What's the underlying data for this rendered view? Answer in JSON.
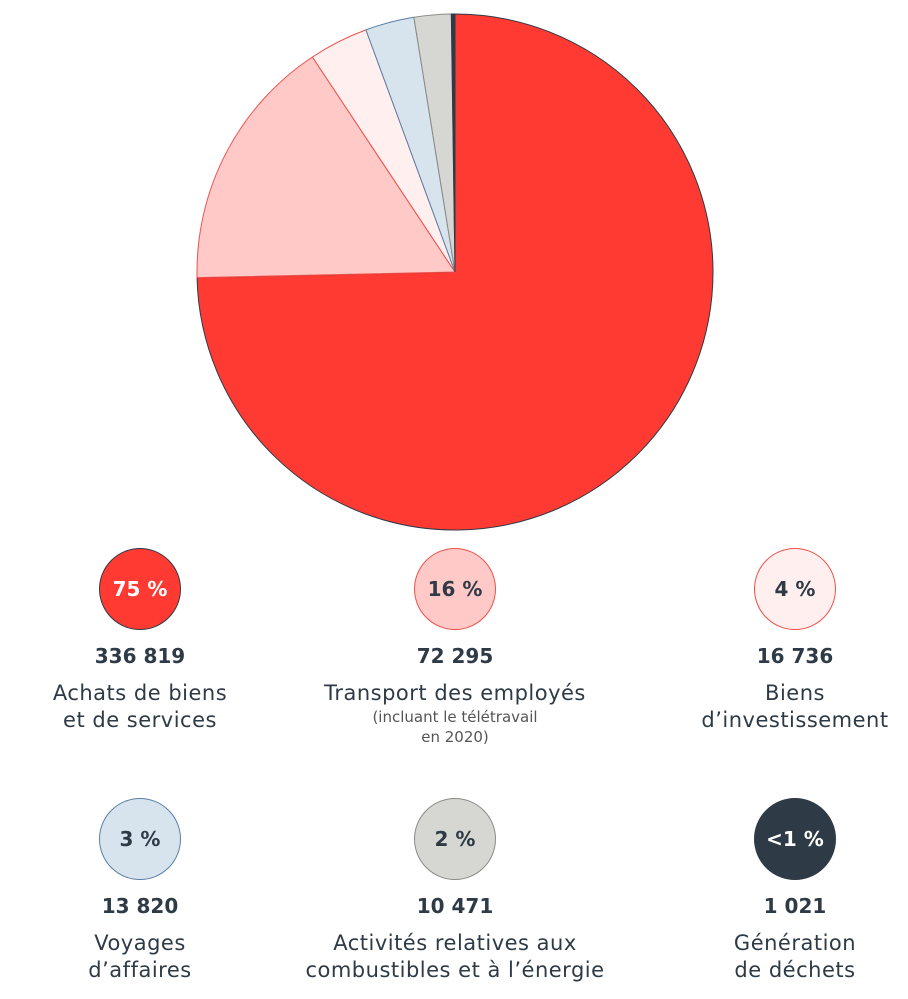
{
  "chart_data": {
    "type": "pie",
    "categories": [
      "Achats de biens\net de services",
      "Transport des employés",
      "Biens\nd’investissement",
      "Voyages\nd’affaires",
      "Activités relatives aux\ncombustibles et à l’énergie",
      "Génération\nde déchets"
    ],
    "notes": [
      null,
      "(incluant le télétravail\nen 2020)",
      null,
      null,
      null,
      null
    ],
    "values": [
      336819,
      72295,
      16736,
      13820,
      10471,
      1021
    ],
    "value_labels": [
      "336 819",
      "72 295",
      "16 736",
      "13 820",
      "10 471",
      "1 021"
    ],
    "shares": [
      "75 %",
      "16 %",
      "4 %",
      "3 %",
      "2 %",
      "<1 %"
    ],
    "colors": [
      "#fe3a33",
      "#ffc9c7",
      "#fff0ef",
      "#d7e4ee",
      "#d6d6d2",
      "#2e3a45"
    ],
    "borders": [
      "#2e3a45",
      "#f0504a",
      "#f0504a",
      "#5a7fa6",
      "#8a8a86",
      "#2e3a45"
    ]
  }
}
